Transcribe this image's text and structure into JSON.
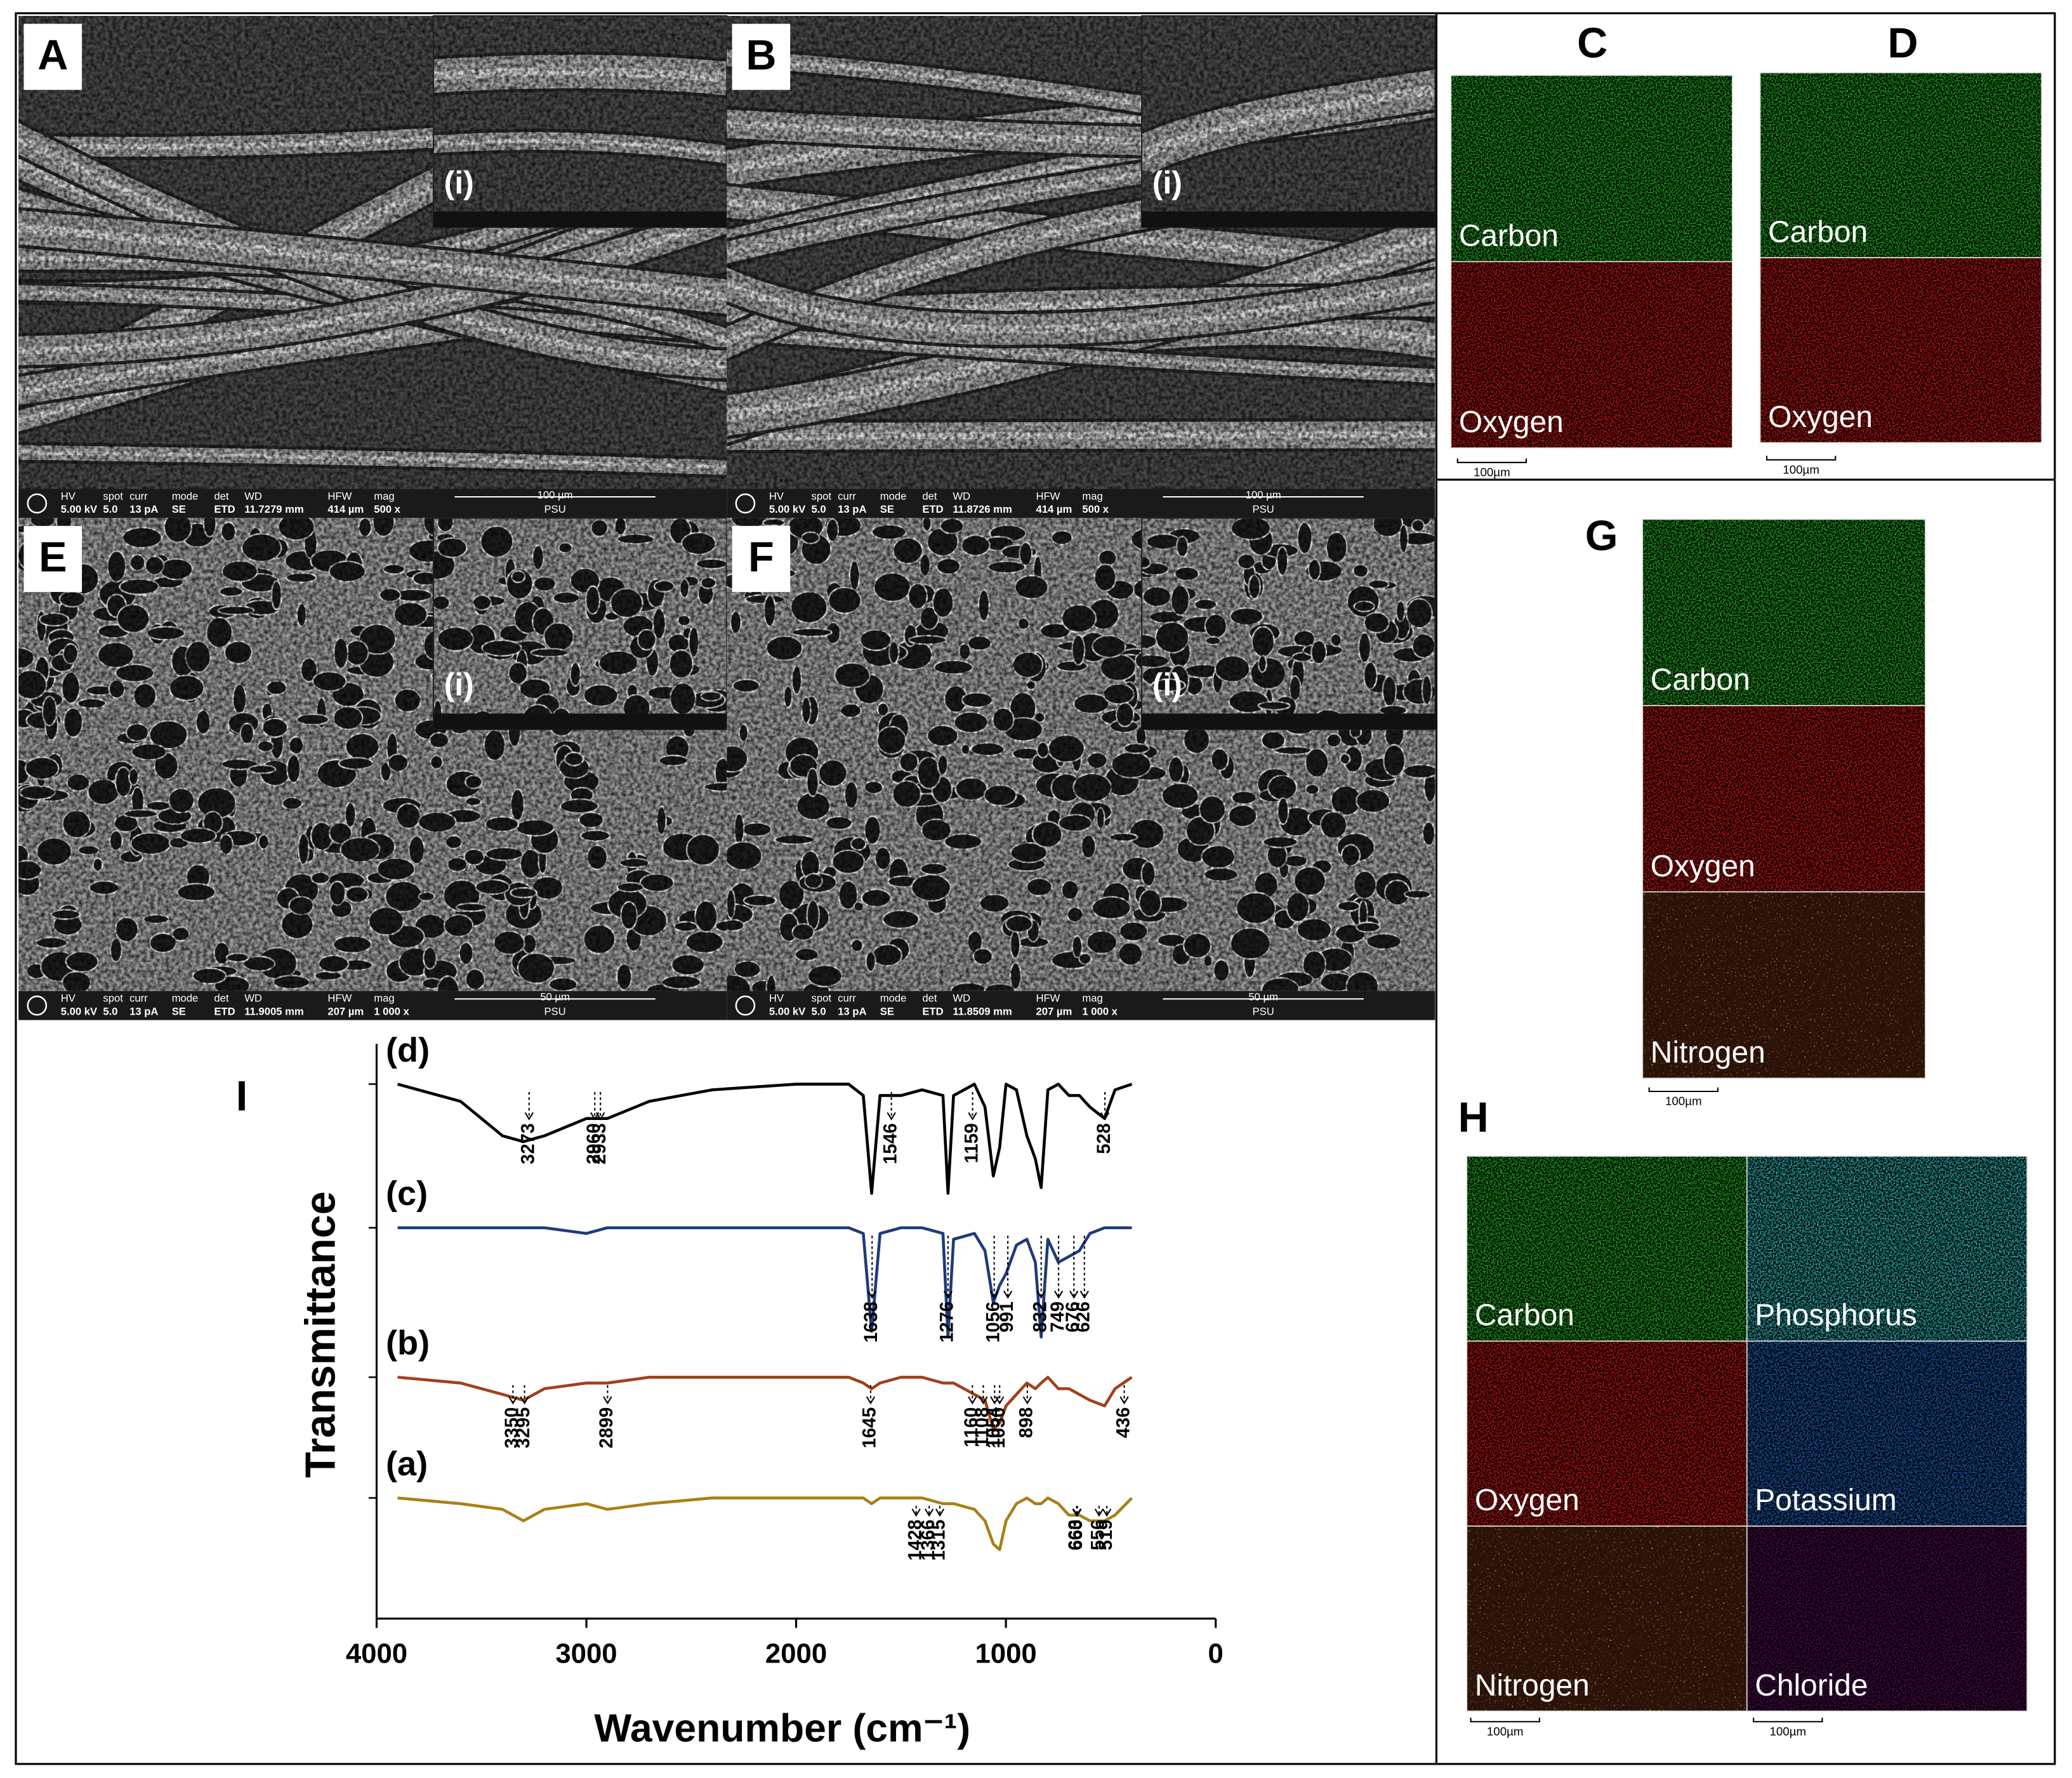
{
  "sem_bar_headers": [
    "HV",
    "spot",
    "curr",
    "mode",
    "det",
    "WD",
    "HFW",
    "mag"
  ],
  "sem_panels": [
    {
      "letter": "A",
      "inset": "(i)",
      "bar": [
        "5.00 kV",
        "5.0",
        "13 pA",
        "SE",
        "ETD",
        "11.7279 mm",
        "414 µm",
        "500 x"
      ],
      "scale": "100 µm",
      "org": "PSU"
    },
    {
      "letter": "B",
      "inset": "(i)",
      "bar": [
        "5.00 kV",
        "5.0",
        "13 pA",
        "SE",
        "ETD",
        "11.8726 mm",
        "414 µm",
        "500 x"
      ],
      "scale": "100 µm",
      "org": "PSU"
    },
    {
      "letter": "E",
      "inset": "(i)",
      "bar": [
        "5.00 kV",
        "5.0",
        "13 pA",
        "SE",
        "ETD",
        "11.9005 mm",
        "207 µm",
        "1 000 x"
      ],
      "scale": "50 µm",
      "org": "PSU"
    },
    {
      "letter": "F",
      "inset": "(i)",
      "bar": [
        "5.00 kV",
        "5.0",
        "13 pA",
        "SE",
        "ETD",
        "11.8509 mm",
        "207 µm",
        "1 000 x"
      ],
      "scale": "50 µm",
      "org": "PSU"
    }
  ],
  "eds_panels": [
    {
      "letter": "C",
      "maps": [
        {
          "label": "Carbon",
          "color": "#1c9a1c"
        },
        {
          "label": "Oxygen",
          "color": "#b51212"
        }
      ],
      "scales": [
        "100µm"
      ]
    },
    {
      "letter": "D",
      "maps": [
        {
          "label": "Carbon",
          "color": "#1c9a1c"
        },
        {
          "label": "Oxygen",
          "color": "#b51212"
        }
      ],
      "scales": [
        "100µm"
      ]
    },
    {
      "letter": "G",
      "maps": [
        {
          "label": "Carbon",
          "color": "#1c9a1c"
        },
        {
          "label": "Oxygen",
          "color": "#b51212"
        },
        {
          "label": "Nitrogen",
          "color": "#2a1208"
        }
      ],
      "scales": [
        "100µm"
      ]
    },
    {
      "letter": "H",
      "maps": [
        {
          "label": "Carbon",
          "color": "#1c9a1c"
        },
        {
          "label": "Oxygen",
          "color": "#b51212"
        },
        {
          "label": "Nitrogen",
          "color": "#2a1208"
        },
        {
          "label": "Phosphorus",
          "color": "#2aa3a3"
        },
        {
          "label": "Potassium",
          "color": "#1b52a0"
        },
        {
          "label": "Chloride",
          "color": "#4a0a4e"
        }
      ],
      "scales": [
        "100µm",
        "100µm"
      ]
    }
  ],
  "chart_data": {
    "type": "line",
    "panel_label": "I",
    "y_label": "Transmittance",
    "x_label": "Wavenumber (cm⁻¹)",
    "xlim": [
      4000,
      0
    ],
    "xticks": [
      4000,
      3000,
      2000,
      1000,
      0
    ],
    "ylim": [
      0,
      100
    ],
    "x": [
      3900,
      3600,
      3400,
      3300,
      3200,
      3000,
      2900,
      2700,
      2400,
      2000,
      1750,
      1680,
      1640,
      1600,
      1500,
      1400,
      1300,
      1276,
      1250,
      1150,
      1100,
      1060,
      1030,
      1000,
      950,
      900,
      860,
      832,
      800,
      750,
      700,
      650,
      600,
      530,
      480,
      400
    ],
    "series": [
      {
        "name": "(a)",
        "color": "#a88016",
        "values": [
          21,
          20,
          19,
          17,
          19,
          20,
          19,
          20,
          21,
          21,
          21,
          21,
          20,
          21,
          21,
          21,
          20,
          20,
          20,
          19,
          17,
          13,
          12,
          17,
          20,
          21,
          20,
          20,
          21,
          20,
          18,
          18,
          17,
          17,
          18,
          21
        ],
        "peaks": [
          1428,
          1366,
          1315,
          663,
          660,
          556,
          519
        ]
      },
      {
        "name": "(b)",
        "color": "#a0401a",
        "values": [
          42,
          41,
          39,
          38,
          40,
          41,
          41,
          42,
          42,
          42,
          42,
          41,
          40,
          41,
          42,
          42,
          41,
          41,
          41,
          39,
          38,
          33,
          34,
          37,
          39,
          41,
          40,
          41,
          42,
          40,
          40,
          39,
          38,
          37,
          40,
          42
        ],
        "peaks": [
          3350,
          3295,
          2899,
          1645,
          1160,
          1108,
          1054,
          1030,
          898,
          436
        ]
      },
      {
        "name": "(c)",
        "color": "#1f3a7a",
        "values": [
          68,
          68,
          68,
          68,
          68,
          67,
          68,
          68,
          68,
          68,
          68,
          67,
          50,
          67,
          68,
          68,
          67,
          49,
          66,
          67,
          64,
          55,
          58,
          60,
          65,
          66,
          62,
          49,
          66,
          62,
          63,
          64,
          67,
          68,
          68,
          68
        ],
        "peaks": [
          1638,
          1276,
          1056,
          991,
          832,
          749,
          676,
          626
        ]
      },
      {
        "name": "(d)",
        "color": "#000000",
        "values": [
          93,
          90,
          84,
          83,
          84,
          87,
          87,
          90,
          92,
          93,
          93,
          91,
          74,
          91,
          91,
          92,
          91,
          74,
          91,
          93,
          89,
          77,
          82,
          93,
          92,
          84,
          80,
          75,
          92,
          93,
          91,
          91,
          89,
          87,
          92,
          93
        ],
        "peaks": [
          3273,
          2960,
          2933,
          1546,
          1159,
          528
        ]
      }
    ]
  }
}
